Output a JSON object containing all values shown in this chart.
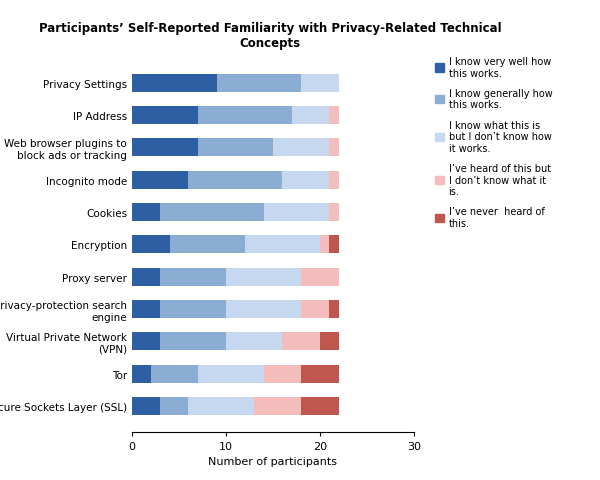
{
  "title": "Participants’ Self-Reported Familiarity with Privacy-Related Technical\nConcepts",
  "categories": [
    "Privacy Settings",
    "IP Address",
    "Web browser plugins to\nblock ads or tracking",
    "Incognito mode",
    "Cookies",
    "Encryption",
    "Proxy server",
    "Privacy-protection search\nengine",
    "Virtual Private Network\n(VPN)",
    "Tor",
    "Secure Sockets Layer (SSL)"
  ],
  "legend_labels": [
    "I know very well how\nthis works.",
    "I know generally how\nthis works.",
    "I know what this is\nbut I don’t know how\nit works.",
    "I’ve heard of this but\nI don’t know what it\nis.",
    "I’ve never  heard of\nthis."
  ],
  "colors": [
    "#2E5FA3",
    "#8BADD4",
    "#C5D8F0",
    "#F4BCBA",
    "#C0574E"
  ],
  "data": [
    [
      9,
      9,
      4,
      0,
      0
    ],
    [
      7,
      10,
      4,
      1,
      0
    ],
    [
      7,
      8,
      6,
      1,
      0
    ],
    [
      6,
      10,
      5,
      1,
      0
    ],
    [
      3,
      11,
      7,
      1,
      0
    ],
    [
      4,
      8,
      8,
      1,
      1
    ],
    [
      3,
      7,
      8,
      4,
      0
    ],
    [
      3,
      7,
      8,
      3,
      1
    ],
    [
      3,
      7,
      6,
      4,
      2
    ],
    [
      2,
      5,
      7,
      4,
      4
    ],
    [
      3,
      3,
      7,
      5,
      4
    ]
  ],
  "xlabel": "Number of participants",
  "xlim": [
    0,
    30
  ],
  "xticks": [
    0,
    10,
    20,
    30
  ],
  "figsize": [
    6.0,
    4.81
  ],
  "dpi": 100,
  "bar_height": 0.55,
  "title_fontsize": 8.5,
  "axis_fontsize": 8,
  "ylabel_fontsize": 7.5,
  "legend_fontsize": 7.0,
  "bg_color": "#ffffff"
}
